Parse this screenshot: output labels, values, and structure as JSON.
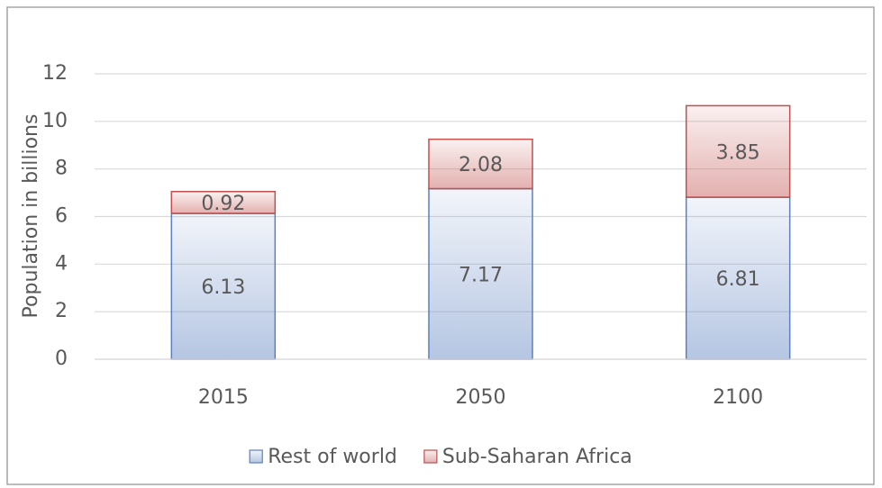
{
  "chart_data": {
    "type": "stacked_bar",
    "y_label": "Population in billions",
    "categories": [
      "2015",
      "2050",
      "2100"
    ],
    "series": [
      {
        "name": "Rest of world",
        "color": "#5b80c0",
        "values": [
          6.13,
          7.17,
          6.81
        ]
      },
      {
        "name": "Sub-Saharan Africa",
        "color": "#c0504d",
        "values": [
          0.92,
          2.08,
          3.85
        ]
      }
    ],
    "ylim": [
      0,
      12
    ],
    "yticks": [
      0,
      2,
      4,
      6,
      8,
      10,
      12
    ],
    "grid": true,
    "legend": "bottom"
  }
}
